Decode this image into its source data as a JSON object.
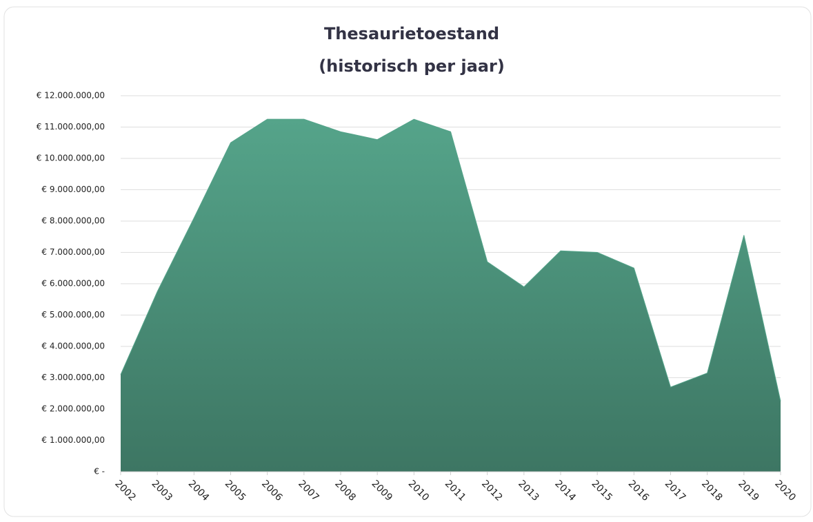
{
  "chart_data": {
    "type": "area",
    "title": [
      "Thesaurietoestand",
      "(historisch per jaar)"
    ],
    "categories": [
      "2002",
      "2003",
      "2004",
      "2005",
      "2006",
      "2007",
      "2008",
      "2009",
      "2010",
      "2011",
      "2012",
      "2013",
      "2014",
      "2015",
      "2016",
      "2017",
      "2018",
      "2019",
      "2020"
    ],
    "values": [
      3100000,
      5750000,
      8100000,
      10500000,
      11250000,
      11250000,
      10850000,
      10600000,
      11250000,
      10850000,
      6700000,
      5900000,
      7050000,
      7000000,
      6500000,
      2700000,
      3150000,
      7550000,
      2250000
    ],
    "color": "#55a48a",
    "ylim": [
      0,
      12000000
    ],
    "yticks": [
      {
        "value": 0,
        "label": "€ -"
      },
      {
        "value": 1000000,
        "label": "€ 1.000.000,00"
      },
      {
        "value": 2000000,
        "label": "€ 2.000.000,00"
      },
      {
        "value": 3000000,
        "label": "€ 3.000.000,00"
      },
      {
        "value": 4000000,
        "label": "€ 4.000.000,00"
      },
      {
        "value": 5000000,
        "label": "€ 5.000.000,00"
      },
      {
        "value": 6000000,
        "label": "€ 6.000.000,00"
      },
      {
        "value": 7000000,
        "label": "€ 7.000.000,00"
      },
      {
        "value": 8000000,
        "label": "€ 8.000.000,00"
      },
      {
        "value": 9000000,
        "label": "€ 9.000.000,00"
      },
      {
        "value": 10000000,
        "label": "€ 10.000.000,00"
      },
      {
        "value": 11000000,
        "label": "€ 11.000.000,00"
      },
      {
        "value": 12000000,
        "label": "€ 12.000.000,00"
      }
    ],
    "grid": true
  }
}
